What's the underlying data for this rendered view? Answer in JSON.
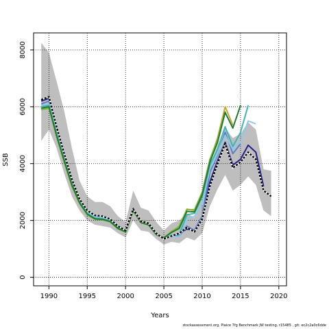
{
  "chart_data": {
    "type": "line",
    "title": "",
    "xlabel": "Years",
    "ylabel": "SSB",
    "xlim": [
      1988,
      2021
    ],
    "ylim": [
      -300,
      8600
    ],
    "x_ticks": [
      1990,
      1995,
      2000,
      2005,
      2010,
      2015,
      2020
    ],
    "y_ticks": [
      0,
      2000,
      4000,
      6000,
      8000
    ],
    "grid": true,
    "legend": "none",
    "confidence_band": {
      "x": [
        1989,
        1990,
        1991,
        1992,
        1993,
        1994,
        1995,
        1996,
        1997,
        1998,
        1999,
        2000,
        2001,
        2002,
        2003,
        2004,
        2005,
        2006,
        2007,
        2008,
        2009,
        2010,
        2011,
        2012,
        2013,
        2014,
        2015,
        2016,
        2017,
        2018,
        2019
      ],
      "upper": [
        8250,
        7900,
        6900,
        5850,
        4550,
        3400,
        2850,
        2650,
        2650,
        2500,
        2150,
        1950,
        3050,
        2450,
        2350,
        1950,
        1650,
        1900,
        2000,
        2250,
        2100,
        2950,
        3900,
        4650,
        5250,
        4900,
        5050,
        5450,
        5200,
        3800,
        3750
      ],
      "lower": [
        4800,
        5200,
        4550,
        3650,
        2850,
        2350,
        2000,
        1850,
        1800,
        1750,
        1550,
        1400,
        2000,
        1650,
        1600,
        1350,
        1150,
        1250,
        1200,
        1400,
        1300,
        1550,
        2500,
        3100,
        3600,
        3050,
        3250,
        3550,
        3250,
        2350,
        2150
      ],
      "color": "#bebebe"
    },
    "series": [
      {
        "color": "#000000",
        "dashed": true,
        "x": [
          1989,
          1990,
          1991,
          1992,
          1993,
          1994,
          1995,
          1996,
          1997,
          1998,
          1999,
          2000,
          2001,
          2002,
          2003,
          2004,
          2005,
          2006,
          2007,
          2008,
          2009,
          2010,
          2011,
          2012,
          2013,
          2014,
          2015,
          2016,
          2017,
          2018,
          2019
        ],
        "values": [
          6250,
          6350,
          5300,
          4350,
          3450,
          2750,
          2350,
          2180,
          2150,
          2050,
          1800,
          1650,
          2400,
          1980,
          1900,
          1550,
          1350,
          1450,
          1550,
          1750,
          1600,
          2050,
          3200,
          4000,
          4700,
          3850,
          4050,
          4400,
          4150,
          3050,
          2850
        ]
      },
      {
        "color": "#1e1e8a",
        "x": [
          1989,
          1990,
          1991,
          1992,
          1993,
          1994,
          1995,
          1996,
          1997,
          1998,
          1999,
          2000,
          2001,
          2002,
          2003,
          2004,
          2005,
          2006,
          2007,
          2008,
          2009,
          2010,
          2011,
          2012,
          2013,
          2014,
          2015,
          2016,
          2017,
          2018
        ],
        "values": [
          6200,
          6300,
          5250,
          4300,
          3400,
          2750,
          2350,
          2180,
          2150,
          2050,
          1800,
          1650,
          2400,
          1980,
          1900,
          1550,
          1350,
          1450,
          1550,
          1700,
          1650,
          2150,
          3350,
          4100,
          4750,
          3950,
          4150,
          4650,
          4400,
          3200
        ]
      },
      {
        "color": "#5a7ec8",
        "x": [
          1989,
          1990,
          1991,
          1992,
          1993,
          1994,
          1995,
          1996,
          1997,
          1998,
          1999,
          2000,
          2001,
          2002,
          2003,
          2004,
          2005,
          2006,
          2007,
          2008,
          2009,
          2010,
          2011,
          2012,
          2013,
          2014,
          2015
        ],
        "values": [
          6100,
          6200,
          5150,
          4250,
          3350,
          2700,
          2300,
          2150,
          2120,
          2020,
          1780,
          1630,
          2380,
          1960,
          1880,
          1540,
          1360,
          1440,
          1450,
          1800,
          1650,
          2150,
          3700,
          4300,
          5100,
          4350,
          4700
        ]
      },
      {
        "color": "#8ec8ea",
        "x": [
          1989,
          1990,
          1991,
          1992,
          1993,
          1994,
          1995,
          1996,
          1997,
          1998,
          1999,
          2000,
          2001,
          2002,
          2003,
          2004,
          2005,
          2006,
          2007,
          2008,
          2009,
          2010,
          2011,
          2012,
          2013,
          2014,
          2015,
          2016,
          2017
        ],
        "values": [
          6050,
          6100,
          5100,
          4200,
          3320,
          2680,
          2280,
          2120,
          2100,
          2000,
          1760,
          1620,
          2370,
          1950,
          1870,
          1530,
          1360,
          1430,
          1430,
          2050,
          2150,
          2600,
          3800,
          4350,
          5000,
          4500,
          4750,
          5500,
          5400
        ]
      },
      {
        "color": "#3cb4b4",
        "x": [
          1989,
          1990,
          1991,
          1992,
          1993,
          1994,
          1995,
          1996,
          1997,
          1998,
          1999,
          2000,
          2001,
          2002,
          2003,
          2004,
          2005,
          2006,
          2007,
          2008,
          2009,
          2010,
          2011,
          2012,
          2013,
          2014,
          2015,
          2016
        ],
        "values": [
          6000,
          6050,
          5050,
          4150,
          3300,
          2650,
          2250,
          2080,
          2060,
          1980,
          1740,
          1610,
          2360,
          1940,
          1860,
          1520,
          1370,
          1480,
          1500,
          2200,
          2250,
          2850,
          3950,
          4500,
          5300,
          4600,
          5100,
          6050
        ]
      },
      {
        "color": "#c8a22a",
        "x": [
          1989,
          1990,
          1991,
          1992,
          1993,
          1994,
          1995,
          1996,
          1997,
          1998,
          1999,
          2000,
          2001,
          2002,
          2003,
          2004,
          2005,
          2006,
          2007,
          2008,
          2009,
          2010,
          2011,
          2012,
          2013,
          2014
        ],
        "values": [
          5950,
          6000,
          5000,
          4100,
          3250,
          2620,
          2220,
          2060,
          2040,
          1960,
          1720,
          1600,
          2350,
          1930,
          1850,
          1510,
          1380,
          1620,
          1750,
          2400,
          2350,
          2950,
          4100,
          4900,
          6000,
          5350
        ]
      },
      {
        "color": "#7cb832",
        "x": [
          1989,
          1990,
          1991,
          1992,
          1993,
          1994,
          1995,
          1996,
          1997,
          1998,
          1999,
          2000,
          2001,
          2002,
          2003,
          2004,
          2005,
          2006,
          2007,
          2008,
          2009,
          2010,
          2011,
          2012,
          2013
        ],
        "values": [
          5900,
          5950,
          4950,
          4050,
          3200,
          2600,
          2200,
          2040,
          2020,
          1950,
          1710,
          1590,
          2340,
          1920,
          1840,
          1500,
          1380,
          1600,
          1800,
          2380,
          2380,
          3000,
          4150,
          4850,
          5850
        ]
      },
      {
        "color": "#1e7a32",
        "x": [
          1989,
          1990,
          1991,
          1992,
          1993,
          1994,
          1995,
          1996,
          1997,
          1998,
          1999,
          2000,
          2001,
          2002,
          2003,
          2004,
          2005,
          2006,
          2007,
          2008,
          2009,
          2010,
          2011,
          2012,
          2013,
          2014,
          2015
        ],
        "values": [
          5950,
          6000,
          5000,
          4100,
          3250,
          2620,
          2220,
          2060,
          2040,
          1960,
          1720,
          1600,
          2350,
          1930,
          1850,
          1510,
          1390,
          1580,
          1720,
          2320,
          2300,
          2900,
          4050,
          4750,
          5800,
          5250,
          6050
        ]
      }
    ]
  },
  "footer": {
    "note": "stockassessment.org, Plaice 7fg Benchmark JW testing, r15485 , git: ec2c2a0c6dde"
  }
}
